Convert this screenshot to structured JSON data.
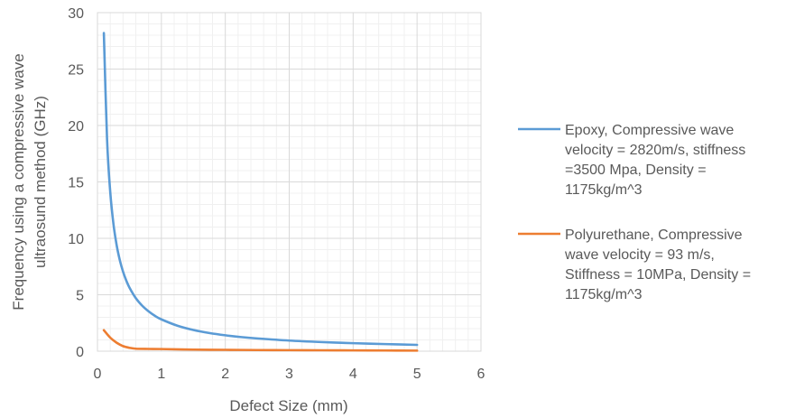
{
  "chart_data": {
    "type": "line",
    "xlabel": "Defect Size (mm)",
    "ylabel_lines": [
      "Frequency using a compressive wave",
      "ultraosund method (GHz)"
    ],
    "xlim": [
      0,
      6
    ],
    "ylim": [
      0,
      30
    ],
    "x_ticks": [
      "0",
      "1",
      "2",
      "3",
      "4",
      "5",
      "6"
    ],
    "y_ticks": [
      "0",
      "5",
      "10",
      "15",
      "20",
      "25",
      "30"
    ],
    "grid": true,
    "legend_position": "right",
    "series": [
      {
        "name_lines": [
          "Epoxy, Compressive wave",
          "velocity = 2820m/s, stiffness",
          "=3500 Mpa, Density =",
          "1175kg/m^3"
        ],
        "color": "#5B9BD5",
        "points": [
          [
            0.1,
            28.2
          ],
          [
            0.15,
            18.8
          ],
          [
            0.2,
            14.1
          ],
          [
            0.25,
            11.28
          ],
          [
            0.3,
            9.4
          ],
          [
            0.35,
            8.06
          ],
          [
            0.4,
            7.05
          ],
          [
            0.45,
            6.27
          ],
          [
            0.5,
            5.64
          ],
          [
            0.6,
            4.7
          ],
          [
            0.7,
            4.03
          ],
          [
            0.8,
            3.53
          ],
          [
            0.9,
            3.13
          ],
          [
            1.0,
            2.82
          ],
          [
            1.25,
            2.26
          ],
          [
            1.5,
            1.88
          ],
          [
            1.75,
            1.61
          ],
          [
            2.0,
            1.41
          ],
          [
            2.25,
            1.25
          ],
          [
            2.5,
            1.13
          ],
          [
            3.0,
            0.94
          ],
          [
            3.5,
            0.81
          ],
          [
            4.0,
            0.71
          ],
          [
            4.5,
            0.63
          ],
          [
            5.0,
            0.56
          ]
        ]
      },
      {
        "name_lines": [
          "Polyurethane, Compressive",
          "wave velocity = 93 m/s,",
          "Stiffness = 10MPa, Density =",
          "1175kg/m^3"
        ],
        "color": "#ED7D31",
        "points": [
          [
            0.1,
            1.86
          ],
          [
            0.2,
            1.2
          ],
          [
            0.3,
            0.75
          ],
          [
            0.4,
            0.45
          ],
          [
            0.5,
            0.3
          ],
          [
            0.6,
            0.22
          ],
          [
            0.8,
            0.2
          ],
          [
            1.0,
            0.19
          ],
          [
            1.5,
            0.14
          ],
          [
            2.0,
            0.12
          ],
          [
            2.5,
            0.1
          ],
          [
            3.0,
            0.09
          ],
          [
            3.5,
            0.08
          ],
          [
            4.0,
            0.07
          ],
          [
            4.5,
            0.06
          ],
          [
            5.0,
            0.05
          ]
        ]
      }
    ]
  }
}
